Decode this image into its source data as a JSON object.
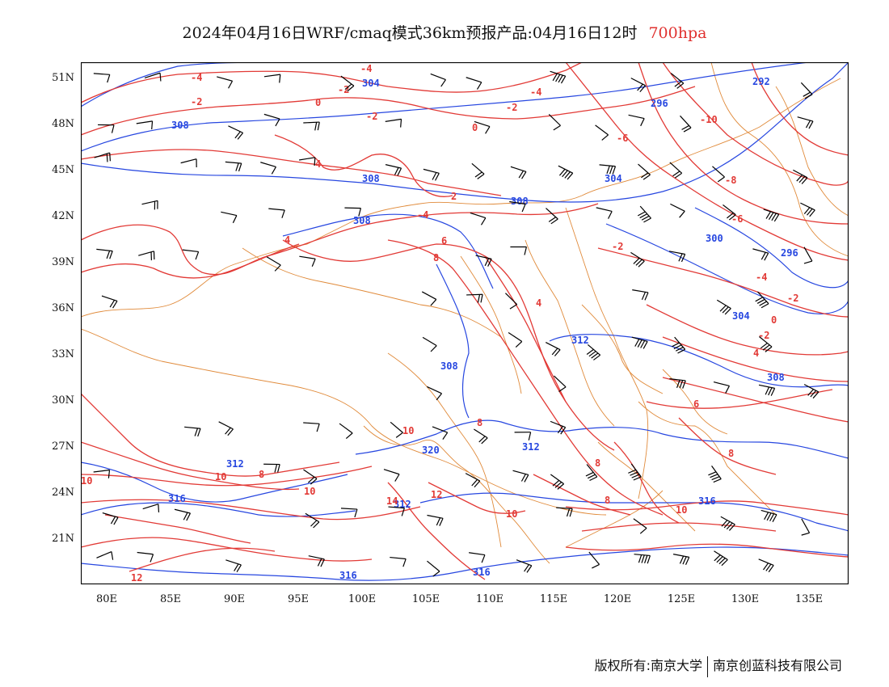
{
  "title": {
    "main": "2024年04月16日WRF/cmaq模式36km预报产品:04月16日12时",
    "level": "700hpa"
  },
  "colors": {
    "temperature": "#e23a36",
    "height": "#2747e0",
    "boundary": "#e08a3a",
    "wind": "#000000"
  },
  "axes": {
    "y_labels": [
      "51N",
      "48N",
      "45N",
      "42N",
      "39N",
      "36N",
      "33N",
      "30N",
      "27N",
      "24N",
      "21N"
    ],
    "x_labels": [
      "80E",
      "85E",
      "90E",
      "95E",
      "100E",
      "105E",
      "110E",
      "115E",
      "120E",
      "125E",
      "130E",
      "135E"
    ]
  },
  "map_data": {
    "lon_range": [
      78,
      138
    ],
    "lat_range": [
      18,
      52
    ],
    "height_contour_labels": [
      "292",
      "296",
      "300",
      "304",
      "308",
      "312",
      "316",
      "320"
    ],
    "temperature_contour_labels": [
      "-10",
      "-8",
      "-6",
      "-4",
      "-2",
      "0",
      "2",
      "4",
      "6",
      "8",
      "10",
      "12",
      "14"
    ]
  },
  "footer": {
    "copyright": "版权所有:南京大学",
    "company": "南京创蓝科技有限公司"
  }
}
